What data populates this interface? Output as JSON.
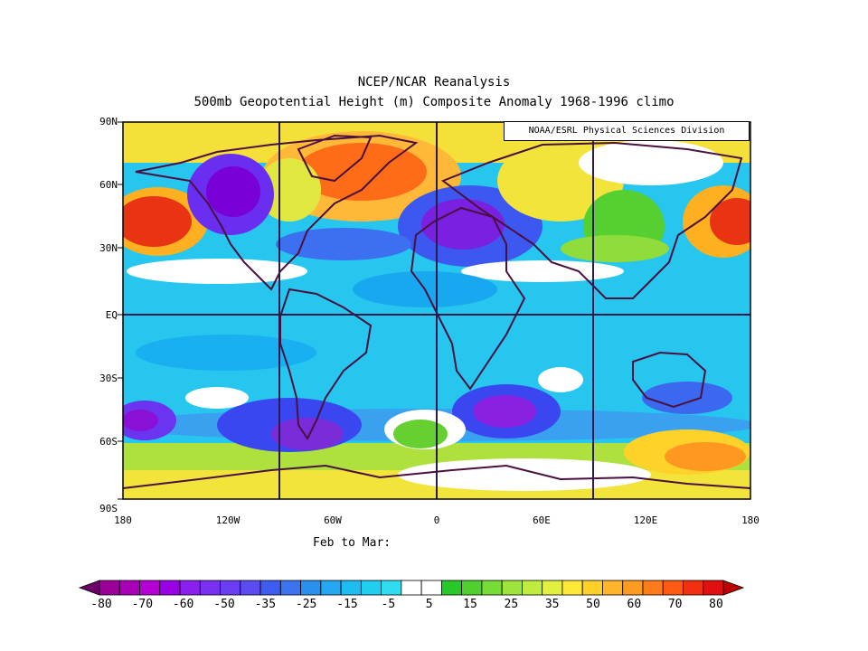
{
  "title": {
    "line1": "NCEP/NCAR Reanalysis",
    "line2": "500mb Geopotential Height (m) Composite Anomaly 1968-1996 climo"
  },
  "credit": "NOAA/ESRL Physical Sciences Division",
  "period": "Feb to Mar:",
  "map": {
    "lat_labels": [
      "90N",
      "60N",
      "30N",
      "EQ",
      "30S",
      "60S",
      "90S"
    ],
    "lon_labels": [
      "180",
      "120W",
      "60W",
      "0",
      "60E",
      "120E",
      "180"
    ],
    "coastline_color": "#4a1040"
  },
  "colorbar": {
    "labels": [
      "-80",
      "-70",
      "-60",
      "-50",
      "-35",
      "-25",
      "-15",
      "-5",
      "5",
      "15",
      "25",
      "35",
      "50",
      "60",
      "70",
      "80"
    ],
    "colors": [
      "#9b0099",
      "#a800b8",
      "#b400d2",
      "#9a00e6",
      "#8a20ee",
      "#7a30f0",
      "#6a3cf2",
      "#5a4cf0",
      "#3f5cf0",
      "#3c74f0",
      "#2a90f0",
      "#26a8f0",
      "#1ebcf0",
      "#20cef0",
      "#30dcf0",
      "#ffffff",
      "#ffffff",
      "#28c828",
      "#50d030",
      "#78dc36",
      "#9ee43c",
      "#c0ec40",
      "#e2f040",
      "#ffe938",
      "#ffd02a",
      "#ffb42a",
      "#ff9a20",
      "#ff7c1a",
      "#ff5a14",
      "#f03010",
      "#e01010"
    ],
    "end_low_color": "#6a0068",
    "end_high_color": "#c00000"
  }
}
